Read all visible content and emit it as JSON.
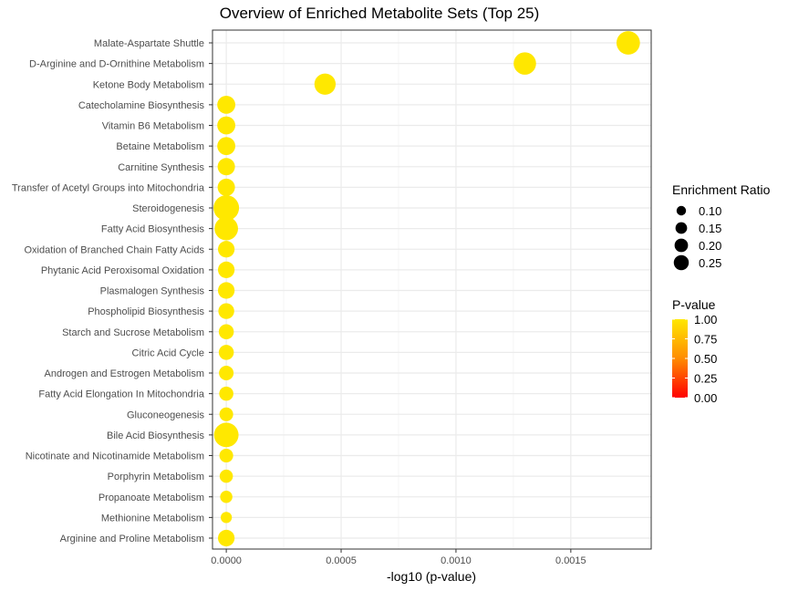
{
  "chart_data": {
    "type": "scatter",
    "title": "Overview of Enriched Metabolite Sets (Top 25)",
    "xlabel": "-log10 (p-value)",
    "ylabel": "",
    "xlim": [
      -6e-05,
      0.00185
    ],
    "x_ticks": [
      "0.0000",
      "0.0005",
      "0.0010",
      "0.0015"
    ],
    "x_tick_values": [
      0,
      0.0005,
      0.001,
      0.0015
    ],
    "grid": true,
    "legend_position": "right",
    "points": [
      {
        "label": "Malate-Aspartate Shuttle",
        "x": 0.00175,
        "ratio": 0.22,
        "p": 0.996
      },
      {
        "label": "D-Arginine and D-Ornithine Metabolism",
        "x": 0.0013,
        "ratio": 0.2,
        "p": 0.997
      },
      {
        "label": "Ketone Body Metabolism",
        "x": 0.00043,
        "ratio": 0.18,
        "p": 0.999
      },
      {
        "label": "Catecholamine Biosynthesis",
        "x": 0.0,
        "ratio": 0.13,
        "p": 1.0
      },
      {
        "label": "Vitamin B6 Metabolism",
        "x": 0.0,
        "ratio": 0.13,
        "p": 1.0
      },
      {
        "label": "Betaine Metabolism",
        "x": 0.0,
        "ratio": 0.13,
        "p": 1.0
      },
      {
        "label": "Carnitine Synthesis",
        "x": 0.0,
        "ratio": 0.12,
        "p": 1.0
      },
      {
        "label": "Transfer of Acetyl Groups into Mitochondria",
        "x": 0.0,
        "ratio": 0.12,
        "p": 1.0
      },
      {
        "label": "Steroidogenesis",
        "x": 0.0,
        "ratio": 0.26,
        "p": 1.0
      },
      {
        "label": "Fatty Acid Biosynthesis",
        "x": 0.0,
        "ratio": 0.22,
        "p": 1.0
      },
      {
        "label": "Oxidation of Branched Chain Fatty Acids",
        "x": 0.0,
        "ratio": 0.11,
        "p": 1.0
      },
      {
        "label": "Phytanic Acid Peroxisomal Oxidation",
        "x": 0.0,
        "ratio": 0.11,
        "p": 1.0
      },
      {
        "label": "Plasmalogen Synthesis",
        "x": 0.0,
        "ratio": 0.11,
        "p": 1.0
      },
      {
        "label": "Phospholipid Biosynthesis",
        "x": 0.0,
        "ratio": 0.1,
        "p": 1.0
      },
      {
        "label": "Starch and Sucrose Metabolism",
        "x": 0.0,
        "ratio": 0.09,
        "p": 1.0
      },
      {
        "label": "Citric Acid Cycle",
        "x": 0.0,
        "ratio": 0.09,
        "p": 1.0
      },
      {
        "label": "Androgen and Estrogen Metabolism",
        "x": 0.0,
        "ratio": 0.085,
        "p": 1.0
      },
      {
        "label": "Fatty Acid Elongation In Mitochondria",
        "x": 0.0,
        "ratio": 0.08,
        "p": 1.0
      },
      {
        "label": "Gluconeogenesis",
        "x": 0.0,
        "ratio": 0.075,
        "p": 1.0
      },
      {
        "label": "Bile Acid Biosynthesis",
        "x": 0.0,
        "ratio": 0.24,
        "p": 1.0
      },
      {
        "label": "Nicotinate and Nicotinamide Metabolism",
        "x": 0.0,
        "ratio": 0.075,
        "p": 1.0
      },
      {
        "label": "Porphyrin Metabolism",
        "x": 0.0,
        "ratio": 0.07,
        "p": 1.0
      },
      {
        "label": "Propanoate Metabolism",
        "x": 0.0,
        "ratio": 0.06,
        "p": 1.0
      },
      {
        "label": "Methionine Metabolism",
        "x": 0.0,
        "ratio": 0.05,
        "p": 1.0
      },
      {
        "label": "Arginine and Proline Metabolism",
        "x": 0.0,
        "ratio": 0.11,
        "p": 1.0
      }
    ],
    "size_legend": {
      "title": "Enrichment Ratio",
      "values": [
        0.1,
        0.15,
        0.2,
        0.25
      ],
      "labels": [
        "0.10",
        "0.15",
        "0.20",
        "0.25"
      ]
    },
    "color_legend": {
      "title": "P-value",
      "labels": [
        "1.00",
        "0.75",
        "0.50",
        "0.25",
        "0.00"
      ],
      "values": [
        1.0,
        0.75,
        0.5,
        0.25,
        0.0
      ],
      "low_color": "#FF0000",
      "high_color": "#FFE800"
    },
    "colors": {
      "point": "#FFE800",
      "panel_border": "#333333",
      "grid_major": "#EBEBEB",
      "grid_minor": "#F5F5F5"
    }
  }
}
